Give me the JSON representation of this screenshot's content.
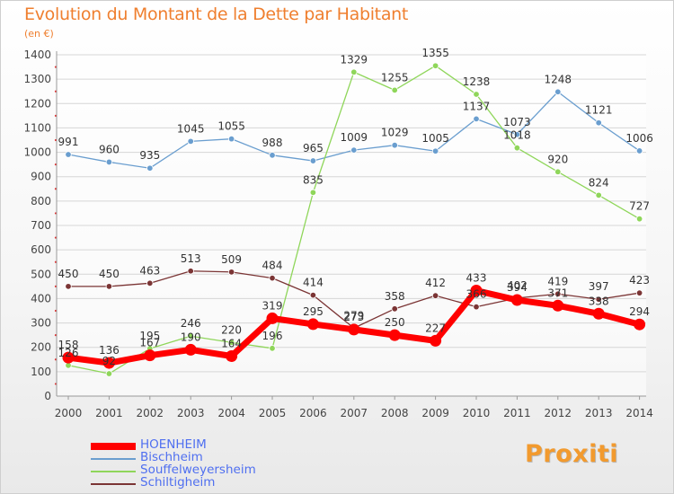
{
  "title": "Evolution du Montant de la Dette par Habitant",
  "unit": "(en €)",
  "logo": "Proxiti",
  "chart_data": {
    "type": "line",
    "title": "Evolution du Montant de la Dette par Habitant",
    "ylabel": "(en €)",
    "xlabel": "",
    "x": [
      "2000",
      "2001",
      "2002",
      "2003",
      "2004",
      "2005",
      "2006",
      "2007",
      "2008",
      "2009",
      "2010",
      "2011",
      "2012",
      "2013",
      "2014"
    ],
    "ylim": [
      0,
      1400
    ],
    "yticks": [
      0,
      100,
      200,
      300,
      400,
      500,
      600,
      700,
      800,
      900,
      1000,
      1100,
      1200,
      1300,
      1400
    ],
    "grid": "horizontal",
    "legend_position": "bottom",
    "series": [
      {
        "name": "HOENHEIM",
        "color": "#ff0000",
        "values": [
          158,
          136,
          167,
          190,
          164,
          319,
          295,
          273,
          250,
          227,
          433,
          394,
          371,
          338,
          294
        ]
      },
      {
        "name": "Bischheim",
        "color": "#6a9ecf",
        "values": [
          991,
          960,
          935,
          1045,
          1055,
          988,
          965,
          1009,
          1029,
          1005,
          1137,
          1073,
          1248,
          1121,
          1006
        ]
      },
      {
        "name": "Souffelweyersheim",
        "color": "#8fd65a",
        "values": [
          126,
          92,
          195,
          246,
          220,
          196,
          835,
          1329,
          1255,
          1355,
          1238,
          1018,
          920,
          824,
          727
        ]
      },
      {
        "name": "Schiltigheim",
        "color": "#7b3535",
        "values": [
          450,
          450,
          463,
          513,
          509,
          484,
          414,
          279,
          358,
          412,
          366,
          402,
          419,
          397,
          423
        ]
      }
    ]
  }
}
